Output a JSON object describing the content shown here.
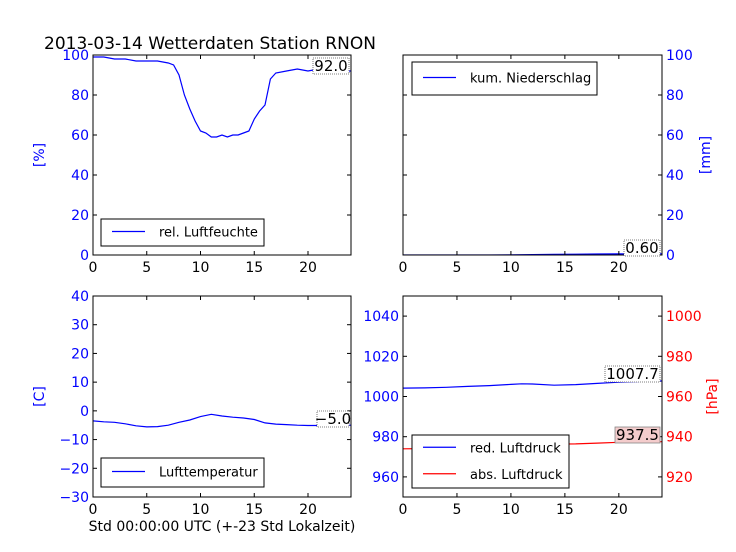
{
  "figure": {
    "title": "2013-03-14 Wetterdaten Station RNON",
    "bottom_label": "Std 00:00:00 UTC (+-23 Std Lokalzeit)"
  },
  "colors": {
    "blue": "#0000ff",
    "red": "#ff0000",
    "value_box_fill": "#f4cccc"
  },
  "chart_data": [
    {
      "id": "humidity",
      "type": "line",
      "xlim": [
        0,
        24
      ],
      "ylim": [
        0,
        100
      ],
      "x_ticks": [
        0,
        5,
        10,
        15,
        20
      ],
      "y_ticks": [
        0,
        20,
        40,
        60,
        80,
        100
      ],
      "ylabel": "[%]",
      "ylabel_side": "left",
      "tick_color": "#0000ff",
      "legend_placement": "lower-left",
      "current_value": "92.0",
      "series": [
        {
          "name": "rel. Luftfeuchte",
          "color": "#0000ff",
          "x": [
            0,
            1,
            2,
            3,
            4,
            5,
            6,
            7,
            7.5,
            8,
            8.5,
            9,
            9.5,
            10,
            10.5,
            11,
            11.5,
            12,
            12.5,
            13,
            13.5,
            14,
            14.5,
            15,
            15.5,
            16,
            16.5,
            17,
            18,
            19,
            20,
            21,
            22,
            23,
            24
          ],
          "values": [
            99,
            99,
            98,
            98,
            97,
            97,
            97,
            96,
            95,
            90,
            80,
            73,
            67,
            62,
            61,
            59,
            59,
            60,
            59,
            60,
            60,
            61,
            62,
            68,
            72,
            75,
            88,
            91,
            92,
            93,
            92,
            93,
            92,
            92,
            92
          ]
        }
      ]
    },
    {
      "id": "precipitation",
      "type": "line",
      "xlim": [
        0,
        24
      ],
      "ylim": [
        0,
        100
      ],
      "x_ticks": [
        0,
        5,
        10,
        15,
        20
      ],
      "y_ticks": [
        0,
        20,
        40,
        60,
        80,
        100
      ],
      "ylabel": "[mm]",
      "ylabel_side": "right",
      "tick_color": "#0000ff",
      "legend_placement": "upper-left",
      "current_value": "0.60",
      "series": [
        {
          "name": "kum. Niederschlag",
          "color": "#0000ff",
          "x": [
            0,
            4,
            8,
            10,
            12,
            14,
            16,
            18,
            20,
            22,
            24
          ],
          "values": [
            0,
            0,
            0,
            0.1,
            0.2,
            0.3,
            0.4,
            0.5,
            0.55,
            0.6,
            0.6
          ]
        }
      ]
    },
    {
      "id": "temperature",
      "type": "line",
      "xlim": [
        0,
        24
      ],
      "ylim": [
        -30,
        40
      ],
      "x_ticks": [
        0,
        5,
        10,
        15,
        20
      ],
      "y_ticks": [
        -30,
        -20,
        -10,
        0,
        10,
        20,
        30,
        40
      ],
      "ylabel": "[C]",
      "ylabel_side": "left",
      "tick_color": "#0000ff",
      "legend_placement": "lower-left",
      "current_value": "-5.0",
      "series": [
        {
          "name": "Lufttemperatur",
          "color": "#0000ff",
          "x": [
            0,
            1,
            2,
            3,
            4,
            5,
            6,
            7,
            8,
            9,
            10,
            11,
            12,
            13,
            14,
            15,
            16,
            17,
            18,
            19,
            20,
            21,
            22,
            23,
            24
          ],
          "values": [
            -3.5,
            -3.8,
            -4,
            -4.5,
            -5.2,
            -5.6,
            -5.5,
            -5,
            -4,
            -3.2,
            -2,
            -1.2,
            -1.8,
            -2.2,
            -2.5,
            -3,
            -4.2,
            -4.6,
            -4.8,
            -5,
            -5.1,
            -5.1,
            -5,
            -5,
            -5
          ]
        }
      ]
    },
    {
      "id": "pressure",
      "type": "line",
      "xlim": [
        0,
        24
      ],
      "ylim": [
        950,
        1050
      ],
      "y2lim": [
        910,
        1010
      ],
      "x_ticks": [
        0,
        5,
        10,
        15,
        20
      ],
      "y_ticks": [
        960,
        980,
        1000,
        1020,
        1040
      ],
      "y2_ticks": [
        920,
        940,
        960,
        980,
        1000
      ],
      "y2label": "[hPa]",
      "tick_color": "#0000ff",
      "y2_tick_color": "#ff0000",
      "legend_placement": "lower-left",
      "current_value": "1007.7",
      "current_value_2": "937.5",
      "series": [
        {
          "name": "red. Luftdruck",
          "color": "#0000ff",
          "axis": "left",
          "x": [
            0,
            2,
            4,
            6,
            8,
            10,
            11,
            12,
            14,
            16,
            18,
            20,
            22,
            24
          ],
          "values": [
            1004.2,
            1004.3,
            1004.6,
            1005,
            1005.4,
            1006,
            1006.3,
            1006.2,
            1005.6,
            1005.9,
            1006.5,
            1007.1,
            1007.5,
            1007.7
          ]
        },
        {
          "name": "abs. Luftdruck",
          "color": "#ff0000",
          "axis": "right",
          "x": [
            0,
            2,
            4,
            6,
            8,
            10,
            11,
            12,
            14,
            16,
            18,
            20,
            22,
            24
          ],
          "values": [
            934,
            934.1,
            934.4,
            934.9,
            935.5,
            936.4,
            936.9,
            936.7,
            936.3,
            936.4,
            936.8,
            937.2,
            937.4,
            937.5
          ]
        }
      ]
    }
  ]
}
